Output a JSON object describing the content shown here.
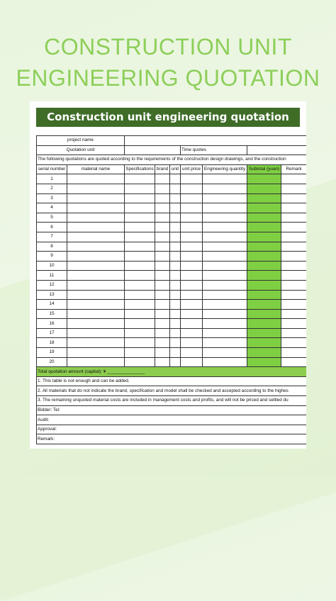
{
  "title_line1": "CONSTRUCTION UNIT",
  "title_line2": "ENGINEERING QUOTATION",
  "sheet": {
    "banner": "Construction unit engineering quotation",
    "project_name_label": "project name",
    "quotation_unit_label": "Quotation unit",
    "time_quotes_label": "Time quotes",
    "notice": "The following quotations are quoted according to the requirements of the construction design drawings, and the construction",
    "columns": [
      "serial number",
      "material name",
      "Specifications",
      "brand",
      "unit",
      "unit price",
      "Engineering quantity",
      "Subtotal (yuan)",
      "Remark"
    ],
    "rows": [
      "1",
      "2",
      "3",
      "4",
      "5",
      "6",
      "7",
      "8",
      "9",
      "10",
      "11",
      "12",
      "13",
      "14",
      "15",
      "16",
      "17",
      "18",
      "19",
      "20"
    ],
    "total_label": "Total quotation amount (capital): ¥ _______________",
    "notes": [
      "1. This table is not enough and can be added.",
      "2. All materials that do not indicate the brand, specification and model shall be checked and accepted according to the highes",
      "3. The remaining unquoted material costs are included in management costs and profits, and will not be priced and settled du"
    ],
    "bidder_label": "Bidder: Tel:",
    "audit_label": "Audit:",
    "approval_label": "Approval:",
    "remark_label": "Remark:"
  },
  "colors": {
    "title_green": "#8dcf5a",
    "banner_green": "#3f6d28",
    "column_green": "#7fcf43"
  }
}
